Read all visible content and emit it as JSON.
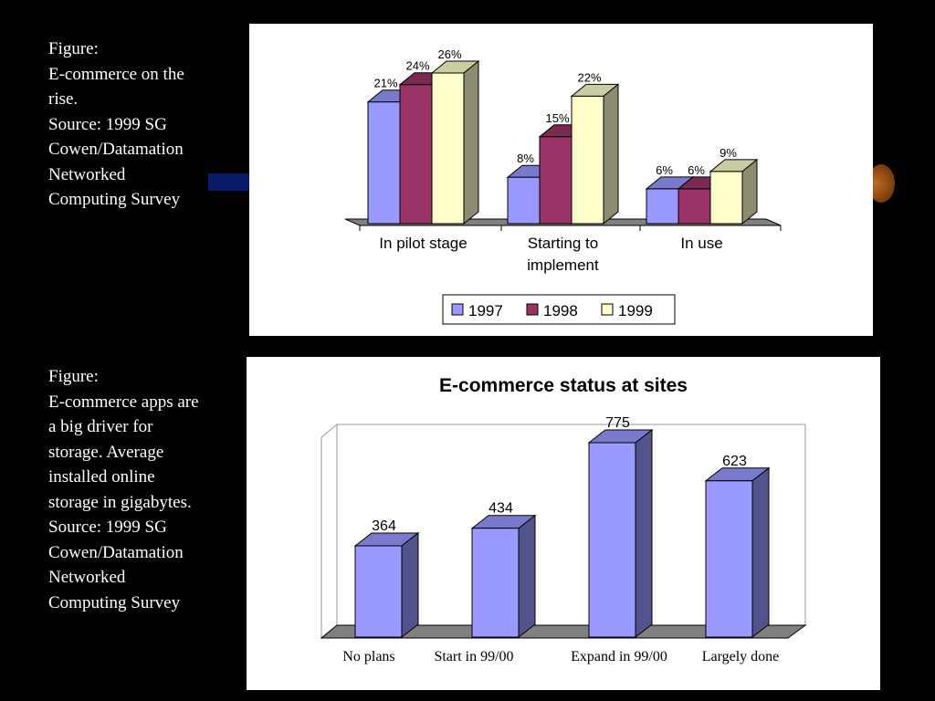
{
  "captions": {
    "top": [
      "Figure:",
      "E-commerce on the",
      "rise.",
      "Source: 1999 SG",
      "Cowen/Datamation",
      "Networked",
      "Computing Survey"
    ],
    "bottom": [
      "Figure:",
      "E-commerce apps are",
      "a big driver for",
      "storage. Average",
      "installed online",
      "storage in gigabytes.",
      "Source: 1999 SG",
      "Cowen/Datamation",
      "Networked",
      "Computing Survey"
    ]
  },
  "chart_data": [
    {
      "type": "bar",
      "style": "3d-clustered",
      "categories": [
        [
          "In pilot stage"
        ],
        [
          "Starting to",
          "implement"
        ],
        [
          "In use"
        ]
      ],
      "series": [
        {
          "name": "1997",
          "values": [
            21,
            8,
            6
          ],
          "labels": [
            "21%",
            "8%",
            "6%"
          ],
          "color": "#9999ff"
        },
        {
          "name": "1998",
          "values": [
            24,
            15,
            6
          ],
          "labels": [
            "24%",
            "15%",
            "6%"
          ],
          "color": "#993366"
        },
        {
          "name": "1999",
          "values": [
            26,
            22,
            9
          ],
          "labels": [
            "26%",
            "22%",
            "9%"
          ],
          "color": "#ffffcc"
        }
      ],
      "ylim": [
        0,
        26
      ],
      "grid": false,
      "legend": "bottom"
    },
    {
      "type": "bar",
      "style": "3d",
      "title": "E-commerce status at sites",
      "categories": [
        "No plans",
        "Start in 99/00",
        "Expand in 99/00",
        "Largely done"
      ],
      "values": [
        364,
        434,
        775,
        623
      ],
      "labels": [
        "364",
        "434",
        "775",
        "623"
      ],
      "color": "#9999ff",
      "ylim": [
        0,
        775
      ],
      "grid": false,
      "legend": "none"
    }
  ]
}
